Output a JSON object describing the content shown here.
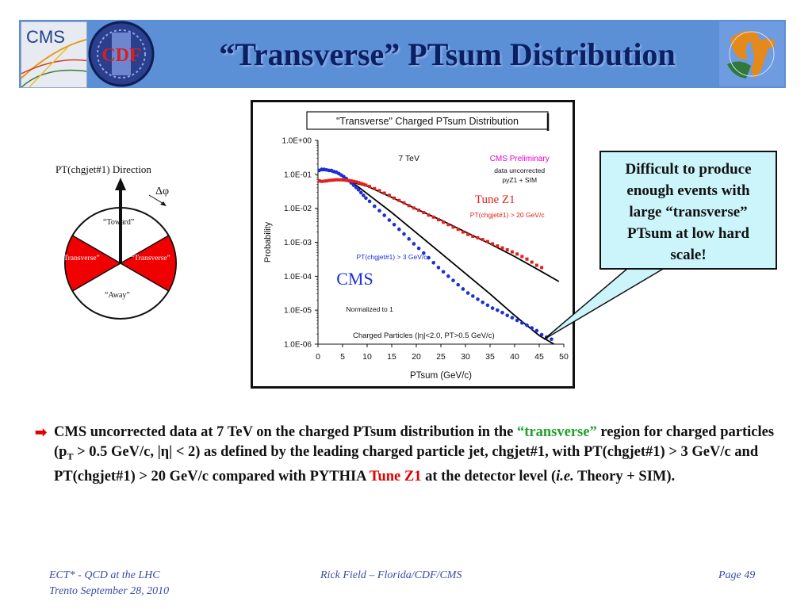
{
  "slide": {
    "title": "“Transverse” PTsum Distribution",
    "logos": {
      "left1": "CMS",
      "left2": "CDF"
    }
  },
  "diagram": {
    "direction_label": "PT(chgjet#1) Direction",
    "delta_phi": "Δφ",
    "toward": "“Toward”",
    "transverse_left": "“Transverse”",
    "transverse_right": "“Transverse”",
    "away": "“Away”"
  },
  "callout": {
    "text": "Difficult to produce enough events with large “transverse” PTsum at low hard scale!"
  },
  "bullet": {
    "part1": "CMS uncorrected data at 7 TeV on the charged PTsum distribution in the ",
    "highlight": "“transverse”",
    "part2": " region for charged particles (p",
    "sub": "T",
    "part3": " > 0.5 GeV/c, |η| < 2) as defined by the leading charged particle jet, chgjet#1, with PT(chgjet#1) > 3 GeV/c and PT(chgjet#1) > 20 GeV/c compared with PYTHIA ",
    "tune": "Tune Z1",
    "part4": " at the detector level (",
    "ie": "i.e.",
    "part5": " Theory + SIM)."
  },
  "footer": {
    "left1": "ECT* - QCD at the LHC",
    "left2": "Trento  September 28, 2010",
    "center": "Rick Field – Florida/CDF/CMS",
    "right": "Page 49"
  },
  "chart_data": {
    "type": "scatter",
    "title": "\"Transverse\" Charged PTsum Distribution",
    "xlabel": "PTsum (GeV/c)",
    "ylabel": "Probability",
    "xlim": [
      0,
      50
    ],
    "ylim": [
      1e-06,
      1
    ],
    "yscale": "log",
    "x_ticks": [
      0,
      5,
      10,
      15,
      20,
      25,
      30,
      35,
      40,
      45,
      50
    ],
    "y_ticks": [
      "1.0E-06",
      "1.0E-05",
      "1.0E-04",
      "1.0E-03",
      "1.0E-02",
      "1.0E-01",
      "1.0E+00"
    ],
    "annotations": {
      "energy": "7 TeV",
      "preliminary": "CMS Preliminary",
      "uncorrected1": "data uncorrected",
      "uncorrected2": "pyZ1 + SIM",
      "tune": "Tune Z1",
      "high_cut": "PT(chgjet#1) > 20 GeV/c",
      "low_cut": "PT(chgjet#1) > 3 GeV/c",
      "cms": "CMS",
      "normalized": "Normalized to 1",
      "particles": "Charged Particles (|η|<2.0, PT>0.5 GeV/c)"
    },
    "colors": {
      "blue": "#1a2fd6",
      "red": "#e3201b",
      "curve": "#000000"
    },
    "series": [
      {
        "name": "PT(chgjet#1) > 3 GeV/c",
        "color": "#1a2fd6",
        "x": [
          0.25,
          0.75,
          1.25,
          1.75,
          2.25,
          2.75,
          3.25,
          3.75,
          4.25,
          4.75,
          5.25,
          5.75,
          6.25,
          6.75,
          7.25,
          7.75,
          8.25,
          8.75,
          9.25,
          9.75,
          10.5,
          11.5,
          12.5,
          13.5,
          14.5,
          15.5,
          16.5,
          17.5,
          18.5,
          19.5,
          20.5,
          21.5,
          22.5,
          23.5,
          24.5,
          25.5,
          26.5,
          27.5,
          28.5,
          29.5,
          30.5,
          31.5,
          32.5,
          33.5,
          34.5,
          35.5,
          36.5,
          37.5,
          38.5,
          39.5,
          40.5,
          41.5,
          42.5,
          43.5,
          44.5,
          45.5,
          46.5,
          47.5
        ],
        "y": [
          0.13,
          0.14,
          0.14,
          0.135,
          0.13,
          0.13,
          0.12,
          0.115,
          0.105,
          0.095,
          0.085,
          0.075,
          0.065,
          0.056,
          0.048,
          0.041,
          0.035,
          0.029,
          0.024,
          0.02,
          0.016,
          0.0115,
          0.0085,
          0.0062,
          0.0045,
          0.0033,
          0.0024,
          0.00175,
          0.00125,
          0.0009,
          0.00066,
          0.00048,
          0.00035,
          0.00025,
          0.00018,
          0.000135,
          0.0001,
          7.5e-05,
          5.6e-05,
          4.2e-05,
          3.2e-05,
          2.6e-05,
          2.1e-05,
          1.7e-05,
          1.4e-05,
          1.15e-05,
          1e-05,
          8.5e-06,
          7e-06,
          6e-06,
          5e-06,
          4.2e-06,
          3.6e-06,
          3e-06,
          2.5e-06,
          1.9e-06,
          1.6e-06,
          1.4e-06
        ]
      },
      {
        "name": "PT(chgjet#1) > 20 GeV/c",
        "color": "#e3201b",
        "x": [
          0.25,
          0.75,
          1.25,
          1.75,
          2.25,
          2.75,
          3.25,
          3.75,
          4.25,
          4.75,
          5.25,
          5.75,
          6.25,
          6.75,
          7.25,
          7.75,
          8.25,
          8.75,
          9.25,
          9.75,
          10.5,
          11.5,
          12.5,
          13.5,
          14.5,
          15.5,
          16.5,
          17.5,
          18.5,
          19.5,
          20.5,
          21.5,
          22.5,
          23.5,
          24.5,
          25.5,
          26.5,
          27.5,
          28.5,
          29.5,
          30.5,
          31.5,
          32.5,
          33.5,
          34.5,
          35.5,
          36.5,
          37.5,
          38.5,
          39.5,
          40.5,
          41.5,
          42.5,
          43.5,
          44.5,
          45.5
        ],
        "y": [
          0.065,
          0.062,
          0.063,
          0.064,
          0.066,
          0.067,
          0.068,
          0.069,
          0.069,
          0.069,
          0.068,
          0.067,
          0.066,
          0.064,
          0.062,
          0.06,
          0.057,
          0.054,
          0.051,
          0.048,
          0.044,
          0.038,
          0.033,
          0.028,
          0.024,
          0.02,
          0.017,
          0.0145,
          0.012,
          0.0102,
          0.0088,
          0.0075,
          0.0063,
          0.0055,
          0.0046,
          0.0039,
          0.0033,
          0.0028,
          0.0024,
          0.002,
          0.0017,
          0.0015,
          0.00135,
          0.0012,
          0.00105,
          0.0009,
          0.00078,
          0.00068,
          0.0006,
          0.00052,
          0.00045,
          0.00038,
          0.00032,
          0.00026,
          0.00021,
          0.00018
        ]
      }
    ],
    "curves": [
      {
        "name": "pyZ1 + SIM (>3)",
        "x": [
          0,
          2,
          4,
          6,
          8,
          10,
          15,
          20,
          25,
          30,
          35,
          40,
          45,
          48
        ],
        "y": [
          0.13,
          0.13,
          0.105,
          0.07,
          0.045,
          0.027,
          0.0075,
          0.0019,
          0.00048,
          0.00012,
          3e-05,
          7e-06,
          1.8e-06,
          7e-07
        ]
      },
      {
        "name": "pyZ1 + SIM (>20)",
        "x": [
          0,
          5,
          10,
          15,
          20,
          25,
          30,
          35,
          40,
          45,
          49
        ],
        "y": [
          0.06,
          0.068,
          0.045,
          0.021,
          0.0095,
          0.0045,
          0.002,
          0.0009,
          0.00038,
          0.00015,
          7e-05
        ]
      }
    ]
  }
}
